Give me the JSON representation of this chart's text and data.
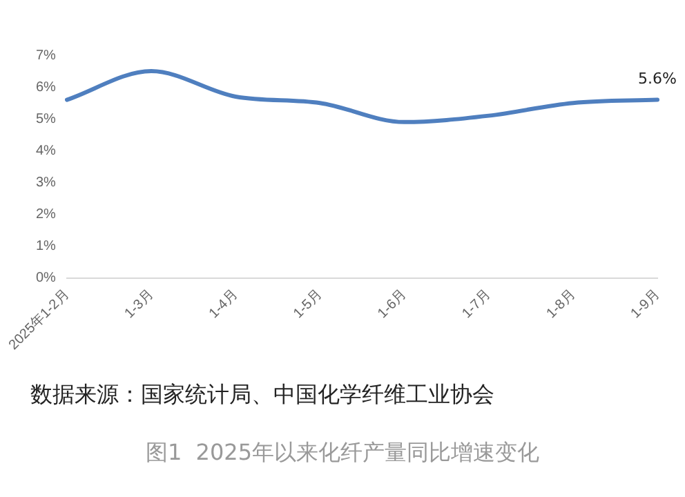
{
  "chart_data": {
    "type": "line",
    "categories": [
      "2025年1-2月",
      "1-3月",
      "1-4月",
      "1-5月",
      "1-6月",
      "1-7月",
      "1-8月",
      "1-9月"
    ],
    "series": [
      {
        "color": "#4f7fbf",
        "values": [
          5.6,
          6.5,
          5.7,
          5.5,
          4.9,
          5.1,
          5.5,
          5.6
        ]
      }
    ],
    "ylim": [
      0,
      7
    ],
    "yticks": [
      {
        "value": 0,
        "label": "0%"
      },
      {
        "value": 1,
        "label": "1%"
      },
      {
        "value": 2,
        "label": "2%"
      },
      {
        "value": 3,
        "label": "3%"
      },
      {
        "value": 4,
        "label": "4%"
      },
      {
        "value": 5,
        "label": "5%"
      },
      {
        "value": 6,
        "label": "6%"
      },
      {
        "value": 7,
        "label": "7%"
      }
    ],
    "grid": false,
    "legend": false,
    "marker": "none",
    "line_style": "solid",
    "annotations": [
      {
        "text": "5.6%",
        "x": "1-9月",
        "y": 5.6
      },
      "数据来源：国家统计局、中国化学纤维工业协会",
      "图1  2025年以来化纤产量同比增速变化"
    ]
  }
}
